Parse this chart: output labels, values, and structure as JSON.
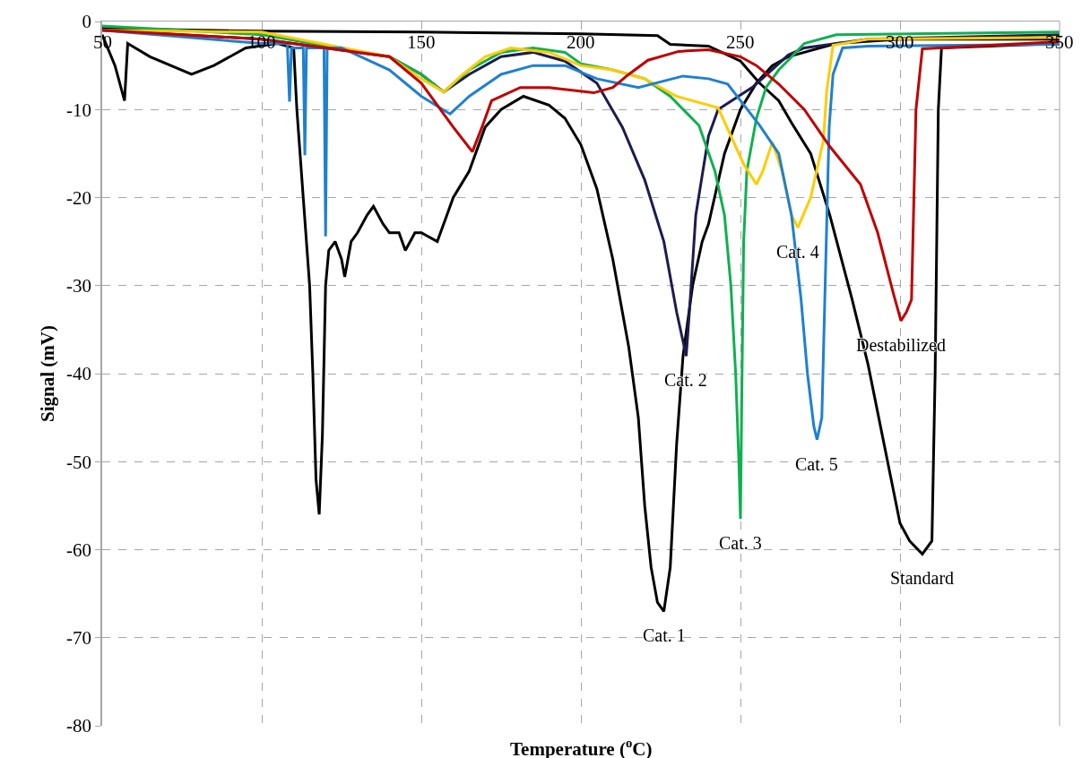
{
  "chart_data": {
    "type": "line",
    "xlabel": "Temperature ($^{o}$C)",
    "ylabel": "Signal (mV)",
    "xlim": [
      50,
      350
    ],
    "xticks": [
      50,
      100,
      150,
      200,
      250,
      300,
      350
    ],
    "ylim": [
      -80,
      0
    ],
    "yticks": [
      -80,
      -70,
      -60,
      -50,
      -40,
      -30,
      -20,
      -10,
      0
    ],
    "grid": true,
    "marker": "none",
    "line_style": "solid",
    "series": [
      {
        "color": "#000000",
        "x": [
          50,
          100,
          150,
          200,
          224,
          228,
          240,
          250,
          256,
          262,
          266,
          272,
          278,
          285,
          290,
          295,
          300,
          303,
          307,
          310,
          311,
          312,
          313,
          350
        ],
        "values": [
          -0.8,
          -1.1,
          -1.2,
          -1.4,
          -1.6,
          -2.6,
          -2.8,
          -4.5,
          -7,
          -9,
          -11.5,
          -15,
          -22,
          -31.6,
          -39,
          -48,
          -57,
          -59,
          -60.5,
          -59,
          -40,
          -10,
          -3,
          -2.5
        ]
      },
      {
        "color": "#000000",
        "x": [
          50,
          54,
          57,
          58,
          65,
          78,
          85,
          95,
          105,
          110,
          111,
          113,
          115,
          116,
          117,
          118,
          119,
          120,
          121,
          123,
          125,
          126,
          128,
          130,
          133,
          135,
          138,
          140,
          143,
          145,
          148,
          150,
          155,
          158,
          160,
          165,
          170,
          175,
          182,
          190,
          195,
          200,
          205,
          210,
          215,
          218,
          220,
          222,
          224,
          226,
          228,
          230,
          232,
          235,
          238,
          240,
          245,
          250,
          255,
          260,
          265,
          270,
          280,
          300,
          350
        ],
        "values": [
          -1.5,
          -5,
          -9,
          -2.5,
          -4,
          -6,
          -5,
          -3,
          -2.5,
          -3,
          -10,
          -20,
          -30,
          -40,
          -52,
          -56,
          -47,
          -30,
          -26,
          -25,
          -27,
          -29,
          -25,
          -24,
          -22,
          -21,
          -23,
          -24,
          -24,
          -26,
          -24,
          -24,
          -25,
          -22,
          -20,
          -17,
          -12,
          -10,
          -8.5,
          -9.5,
          -11,
          -14,
          -19,
          -27,
          -37,
          -45,
          -55,
          -62,
          -66,
          -67,
          -62,
          -48,
          -38,
          -30,
          -25,
          -23,
          -15,
          -10,
          -7,
          -5,
          -4,
          -3.5,
          -2.5,
          -2,
          -2
        ]
      },
      {
        "color": "#1c1c50",
        "x": [
          50,
          100,
          140,
          150,
          157,
          165,
          175,
          185,
          195,
          205,
          213,
          220,
          226,
          230,
          233,
          234,
          236,
          240,
          243,
          254,
          265,
          270,
          290,
          350
        ],
        "values": [
          -1,
          -2,
          -4,
          -6,
          -8,
          -6,
          -4,
          -3.5,
          -4.5,
          -7,
          -12,
          -18,
          -25,
          -33,
          -38,
          -33,
          -22,
          -13,
          -10,
          -7.4,
          -3.8,
          -3,
          -2,
          -1.5
        ]
      },
      {
        "color": "#10b050",
        "x": [
          50,
          100,
          140,
          150,
          157,
          165,
          175,
          185,
          195,
          200,
          210,
          220,
          228,
          237,
          242,
          245,
          247,
          248.5,
          249.5,
          250,
          250.5,
          251,
          252,
          255,
          258,
          262,
          265,
          270,
          280,
          350
        ],
        "values": [
          -0.5,
          -1.5,
          -4,
          -6,
          -8,
          -5.5,
          -3.5,
          -3,
          -3.5,
          -4.8,
          -5.5,
          -6.5,
          -8.5,
          -11.8,
          -17,
          -22,
          -30,
          -40,
          -50,
          -56.5,
          -40,
          -25,
          -17,
          -11,
          -7.5,
          -5.5,
          -4.4,
          -2.5,
          -1.5,
          -1.2
        ]
      },
      {
        "color": "#ffcc00",
        "x": [
          50,
          100,
          140,
          150,
          157,
          163,
          170,
          178,
          190,
          200,
          210,
          220,
          230,
          243,
          251,
          255,
          257,
          260,
          263,
          266,
          268,
          272,
          276,
          277,
          279,
          290,
          350
        ],
        "values": [
          -1,
          -1.2,
          -4,
          -6.5,
          -8,
          -6,
          -4,
          -3,
          -3.5,
          -5,
          -5.5,
          -6.5,
          -8.5,
          -9.8,
          -16.2,
          -18.5,
          -17,
          -13.7,
          -17,
          -22,
          -23.4,
          -20,
          -13.5,
          -8,
          -2.7,
          -2,
          -1.8
        ]
      },
      {
        "color": "#1f80d0",
        "x": [
          50,
          100,
          108,
          108.7,
          109.3,
          113,
          113.5,
          114,
          119.5,
          120,
          120.5,
          125,
          140,
          150,
          159,
          165,
          175,
          185,
          195,
          205,
          218,
          232,
          240,
          246,
          256,
          262,
          266,
          269,
          271,
          273,
          274,
          275.5,
          276.4,
          277.8,
          279,
          282,
          290,
          350
        ],
        "values": [
          -1,
          -2.5,
          -2.5,
          -9.1,
          -3,
          -3,
          -15.2,
          -3,
          -3,
          -24.4,
          -3,
          -3,
          -5.5,
          -8.5,
          -10.5,
          -8.5,
          -6,
          -5,
          -5,
          -6.5,
          -7.5,
          -6.2,
          -6.5,
          -7.1,
          -11.8,
          -15,
          -22,
          -31.6,
          -40,
          -46,
          -47.5,
          -45,
          -32,
          -12,
          -6,
          -3,
          -2.8,
          -2.6
        ]
      },
      {
        "color": "#c00000",
        "x": [
          50,
          100,
          140,
          150,
          160,
          166,
          169,
          172,
          181,
          190,
          204,
          210,
          215,
          221,
          230.6,
          240,
          250,
          255,
          262,
          270,
          278,
          287.6,
          293,
          298,
          300.3,
          302,
          303.6,
          305,
          307,
          350
        ],
        "values": [
          -1,
          -2,
          -4,
          -7,
          -12,
          -14.8,
          -12,
          -9,
          -7.5,
          -7.5,
          -8.1,
          -7.5,
          -6,
          -4.4,
          -3.4,
          -3.2,
          -4,
          -5,
          -7.1,
          -10,
          -14.2,
          -18.5,
          -24,
          -31,
          -34,
          -33,
          -31.6,
          -10,
          -3.1,
          -2.3
        ]
      }
    ],
    "annotations": [
      {
        "text": "Cat. 1",
        "x": 226,
        "y": -67
      },
      {
        "text": "Cat. 2",
        "x": 233,
        "y": -38
      },
      {
        "text": "Cat. 3",
        "x": 250,
        "y": -56.5
      },
      {
        "text": "Cat. 4",
        "x": 268,
        "y": -23.4
      },
      {
        "text": "Cat. 5",
        "x": 274,
        "y": -47.5
      },
      {
        "text": "Destabilized",
        "x": 300.3,
        "y": -34
      },
      {
        "text": "Standard",
        "x": 307,
        "y": -60.5
      }
    ]
  }
}
